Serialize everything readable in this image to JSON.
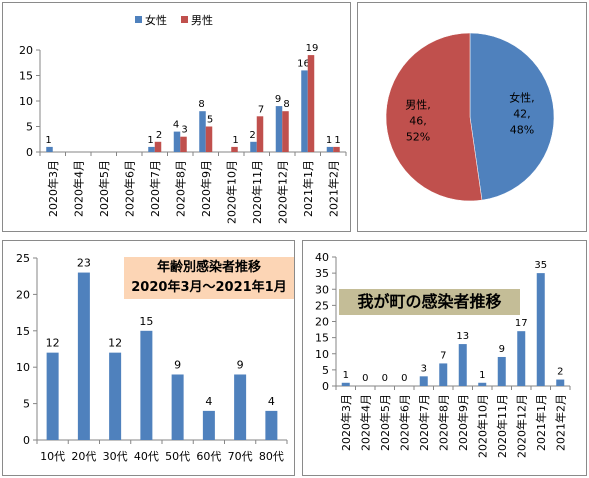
{
  "colors": {
    "female": "#4f81bd",
    "male": "#c0504d",
    "blue": "#4f81bd",
    "title_bg_peach": "#fcd5b5",
    "title_bg_khaki": "#c4bd97"
  },
  "chart_data": [
    {
      "type": "bar",
      "title": "",
      "categories": [
        "2020年3月",
        "2020年4月",
        "2020年5月",
        "2020年6月",
        "2020年7月",
        "2020年8月",
        "2020年9月",
        "2020年10月",
        "2020年11月",
        "2020年12月",
        "2021年1月",
        "2021年2月"
      ],
      "series": [
        {
          "name": "女性",
          "color": "#4f81bd",
          "values": [
            1,
            0,
            0,
            0,
            1,
            4,
            8,
            0,
            2,
            9,
            16,
            1
          ],
          "labels": [
            "1",
            "",
            "",
            "",
            "1",
            "4",
            "8",
            "",
            "2",
            "9",
            "16",
            "1"
          ]
        },
        {
          "name": "男性",
          "color": "#c0504d",
          "values": [
            0,
            0,
            0,
            0,
            2,
            3,
            5,
            1,
            7,
            8,
            19,
            1
          ],
          "labels": [
            "",
            "",
            "",
            "",
            "2",
            "3",
            "5",
            "1",
            "7",
            "8",
            "19",
            "1"
          ]
        }
      ],
      "yticks": [
        "0",
        "5",
        "10",
        "15",
        "20"
      ],
      "ylim": [
        0,
        20
      ],
      "legend": "top",
      "grid": false
    },
    {
      "type": "pie",
      "slices": [
        {
          "name": "女性",
          "value": 42,
          "percent": "48%",
          "color": "#4f81bd",
          "label_lines": [
            "女性,",
            "42,",
            "48%"
          ]
        },
        {
          "name": "男性",
          "value": 46,
          "percent": "52%",
          "color": "#c0504d",
          "label_lines": [
            "男性,",
            "46,",
            "52%"
          ]
        }
      ]
    },
    {
      "type": "bar",
      "title": "年齢別感染者推移",
      "subtitle": "2020年3月～2021年1月",
      "categories": [
        "10代",
        "20代",
        "30代",
        "40代",
        "50代",
        "60代",
        "70代",
        "80代"
      ],
      "values": [
        12,
        23,
        12,
        15,
        9,
        4,
        9,
        4
      ],
      "yticks": [
        "0",
        "5",
        "10",
        "15",
        "20",
        "25"
      ],
      "ylim": [
        0,
        25
      ],
      "grid": false
    },
    {
      "type": "bar",
      "title": "我が町の感染者推移",
      "categories": [
        "2020年3月",
        "2020年4月",
        "2020年5月",
        "2020年6月",
        "2020年7月",
        "2020年8月",
        "2020年9月",
        "2020年10月",
        "2020年11月",
        "2020年12月",
        "2021年1月",
        "2021年2月"
      ],
      "values": [
        1,
        0,
        0,
        0,
        3,
        7,
        13,
        1,
        9,
        17,
        35,
        2
      ],
      "yticks": [
        "0",
        "5",
        "10",
        "15",
        "20",
        "25",
        "30",
        "35",
        "40"
      ],
      "ylim": [
        0,
        40
      ],
      "grid": false
    }
  ]
}
